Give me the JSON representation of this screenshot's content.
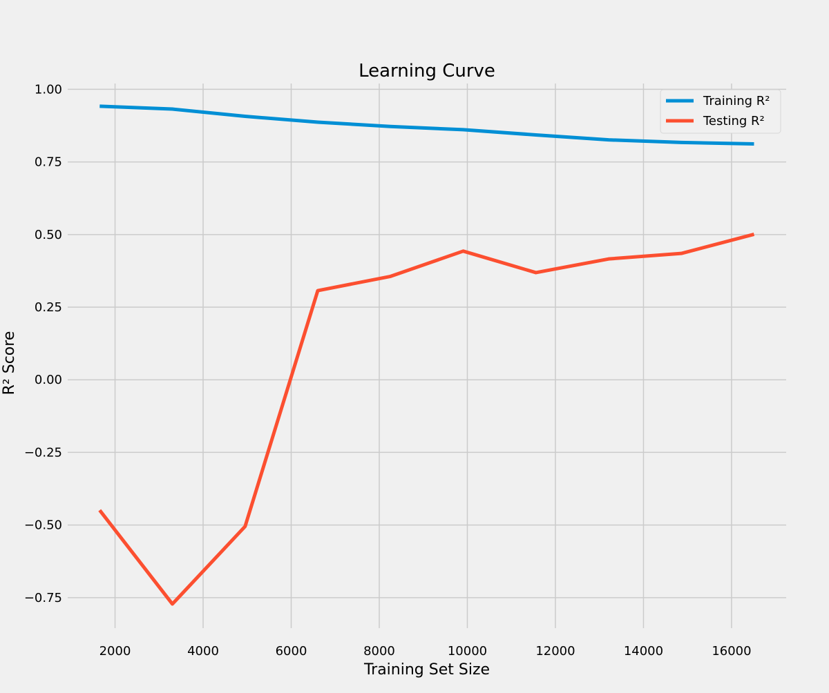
{
  "chart_data": {
    "type": "line",
    "title": "Learning Curve",
    "xlabel": "Training Set Size",
    "ylabel": "R² Score",
    "xlim": [
      925,
      17240
    ],
    "ylim": [
      -0.855,
      1.02
    ],
    "xticks": [
      2000,
      4000,
      6000,
      8000,
      10000,
      12000,
      14000,
      16000
    ],
    "yticks": [
      -0.75,
      -0.5,
      -0.25,
      0.0,
      0.25,
      0.5,
      0.75,
      1.0
    ],
    "xtick_labels": [
      "2000",
      "4000",
      "6000",
      "8000",
      "10000",
      "12000",
      "14000",
      "16000"
    ],
    "ytick_labels": [
      "−0.75",
      "−0.50",
      "−0.25",
      "0.00",
      "0.25",
      "0.50",
      "0.75",
      "1.00"
    ],
    "grid": true,
    "legend_position": "top-right",
    "x": [
      1651,
      3302,
      4953,
      6604,
      8255,
      9906,
      11557,
      13208,
      14859,
      16510
    ],
    "series": [
      {
        "name": "Training R²",
        "color": "#008fd5",
        "values": [
          0.942,
          0.932,
          0.907,
          0.887,
          0.872,
          0.861,
          0.843,
          0.826,
          0.817,
          0.812
        ]
      },
      {
        "name": "Testing R²",
        "color": "#fc4f30",
        "values": [
          -0.449,
          -0.772,
          -0.505,
          0.307,
          0.356,
          0.443,
          0.369,
          0.416,
          0.435,
          0.501
        ]
      }
    ]
  }
}
